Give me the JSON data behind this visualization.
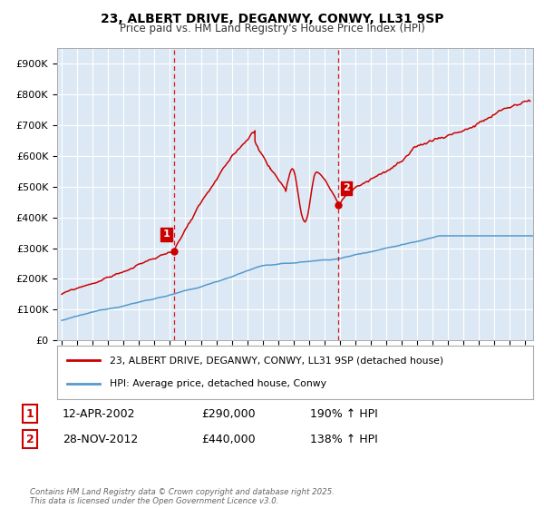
{
  "title": "23, ALBERT DRIVE, DEGANWY, CONWY, LL31 9SP",
  "subtitle": "Price paid vs. HM Land Registry's House Price Index (HPI)",
  "background_color": "#ffffff",
  "plot_bg_color": "#dce9f5",
  "grid_color": "#ffffff",
  "red_line_color": "#cc0000",
  "blue_line_color": "#5599cc",
  "dashed_line_color": "#dd0000",
  "ylim": [
    0,
    950000
  ],
  "yticks": [
    0,
    100000,
    200000,
    300000,
    400000,
    500000,
    600000,
    700000,
    800000,
    900000
  ],
  "ytick_labels": [
    "£0",
    "£100K",
    "£200K",
    "£300K",
    "£400K",
    "£500K",
    "£600K",
    "£700K",
    "£800K",
    "£900K"
  ],
  "xlim_start": 1994.7,
  "xlim_end": 2025.5,
  "sale1_year": 2002.28,
  "sale1_price": 290000,
  "sale2_year": 2012.91,
  "sale2_price": 440000,
  "legend_label_red": "23, ALBERT DRIVE, DEGANWY, CONWY, LL31 9SP (detached house)",
  "legend_label_blue": "HPI: Average price, detached house, Conwy",
  "annotation1_label": "1",
  "annotation1_date": "12-APR-2002",
  "annotation1_price": "£290,000",
  "annotation1_hpi": "190% ↑ HPI",
  "annotation2_label": "2",
  "annotation2_date": "28-NOV-2012",
  "annotation2_price": "£440,000",
  "annotation2_hpi": "138% ↑ HPI",
  "footer": "Contains HM Land Registry data © Crown copyright and database right 2025.\nThis data is licensed under the Open Government Licence v3.0."
}
